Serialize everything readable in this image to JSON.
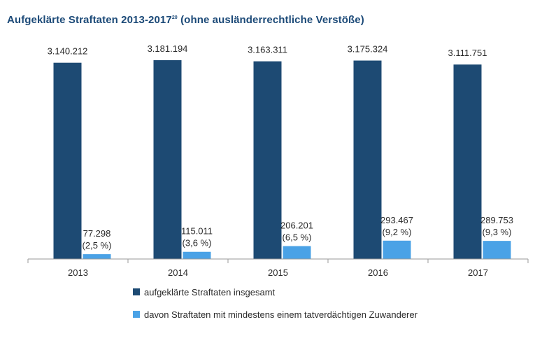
{
  "chart_data": {
    "type": "bar",
    "title": "Aufgeklärte Straftaten 2013-2017",
    "title_footnote": "20",
    "title_suffix": " (ohne ausländerrechtliche Verstöße)",
    "categories": [
      "2013",
      "2014",
      "2015",
      "2016",
      "2017"
    ],
    "series": [
      {
        "name": "aufgeklärte Straftaten insgesamt",
        "color": "#1d4a73",
        "values": [
          3140212,
          3181194,
          3163311,
          3175324,
          3111751
        ],
        "labels": [
          "3.140.212",
          "3.181.194",
          "3.163.311",
          "3.175.324",
          "3.111.751"
        ]
      },
      {
        "name": "davon Straftaten mit mindestens einem tatverdächtigen Zuwanderer",
        "color": "#4aa2e6",
        "values": [
          77298,
          115011,
          206201,
          293467,
          289753
        ],
        "labels": [
          "77.298",
          "115.011",
          "206.201",
          "293.467",
          "289.753"
        ],
        "percent_labels": [
          "(2,5 %)",
          "(3,6 %)",
          "(6,5 %)",
          "(9,2 %)",
          "(9,3 %)"
        ]
      }
    ],
    "xlabel": "",
    "ylabel": "",
    "ylim": [
      0,
      3450000
    ],
    "grid": false,
    "legend_position": "bottom"
  }
}
